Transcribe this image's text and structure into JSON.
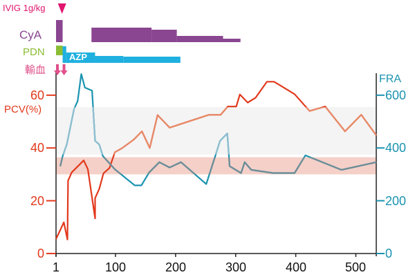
{
  "chart_data": {
    "type": "line",
    "xlabel": "",
    "x_ticks": [
      "1",
      "100",
      "200",
      "300",
      "400",
      "500"
    ],
    "xlim": [
      1,
      534
    ],
    "y_left": {
      "label": "PCV(%)",
      "ticks": [
        "0",
        "20",
        "40",
        "60"
      ],
      "ylim": [
        0,
        70
      ]
    },
    "y_right": {
      "label": "FRA",
      "ticks": [
        "0",
        "200",
        "400",
        "600"
      ],
      "ylim": [
        0,
        700
      ]
    },
    "grid": false,
    "bands": [
      {
        "name": "FRA/PCV upper reference band",
        "axis": "left",
        "range": [
          37.5,
          55.5
        ],
        "color": "#f4f4f4"
      },
      {
        "name": "PCV reference band",
        "axis": "left",
        "range": [
          30,
          36.5
        ],
        "color": "#f4d0c8"
      }
    ],
    "series": [
      {
        "name": "PCV",
        "axis": "left",
        "color": "#e2381c",
        "in_band_color": "#e88a68",
        "x": [
          1,
          14,
          20,
          21,
          27,
          47,
          54,
          66,
          66,
          73,
          80,
          90,
          99,
          110,
          130,
          144,
          157,
          170,
          190,
          256,
          275,
          287,
          301,
          307,
          320,
          333,
          352,
          364,
          398,
          423,
          449,
          482,
          509,
          534
        ],
        "y": [
          5.5,
          11.8,
          5.3,
          27.6,
          30.7,
          35.3,
          32,
          13.3,
          21,
          24.5,
          30.4,
          32.4,
          38.4,
          39.8,
          43.1,
          46.3,
          40,
          52.5,
          47.7,
          52.6,
          52.6,
          55.7,
          55.7,
          60.3,
          57.2,
          59,
          65.1,
          65.1,
          60.4,
          54,
          55.7,
          46.3,
          52.6,
          44.8
        ]
      },
      {
        "name": "FRA",
        "axis": "right",
        "color": "#1a93b0",
        "in_band_color": "#8fbfd0",
        "in_pink_band_color": "#6e8c96",
        "x": [
          8,
          12,
          19,
          31,
          37,
          43,
          49,
          61,
          66,
          73,
          79,
          99,
          132,
          143,
          156,
          173,
          190,
          209,
          251,
          266,
          274,
          286,
          290,
          309,
          315,
          326,
          362,
          398,
          416,
          476,
          534
        ],
        "y": [
          331,
          369,
          414,
          548,
          578,
          680,
          629,
          617,
          427,
          413,
          369,
          319,
          258,
          258,
          307,
          346,
          326,
          346,
          263,
          369,
          427,
          455,
          331,
          305,
          346,
          317,
          305,
          305,
          372,
          317,
          346
        ]
      }
    ],
    "treatments": {
      "ivig": {
        "label": "IVIG 1g/kg",
        "day": 11,
        "color": "#e0156e"
      },
      "cya": {
        "label": "CyA",
        "color": "#8a4690",
        "segments": [
          {
            "start": 1,
            "end": 12,
            "level": 32
          },
          {
            "start": 60,
            "end": 160,
            "level": 21
          },
          {
            "start": 160,
            "end": 202,
            "level": 18
          },
          {
            "start": 202,
            "end": 279,
            "level": 9
          },
          {
            "start": 279,
            "end": 308,
            "level": 5
          }
        ]
      },
      "pdn": {
        "label": "PDN",
        "color": "#8bbd35",
        "segments": [
          {
            "start": 1,
            "end": 12,
            "level": 14
          }
        ]
      },
      "azp": {
        "label": "AZP",
        "color": "#1fb0e0",
        "segments": [
          {
            "start": 12,
            "end": 18,
            "level": 24
          },
          {
            "start": 18,
            "end": 66,
            "level": 15
          },
          {
            "start": 66,
            "end": 113,
            "level": 10
          },
          {
            "start": 113,
            "end": 208,
            "level": 9
          }
        ]
      },
      "transfusion": {
        "label": "輸血",
        "color": "#e0508a",
        "days": [
          1,
          12
        ]
      }
    }
  }
}
